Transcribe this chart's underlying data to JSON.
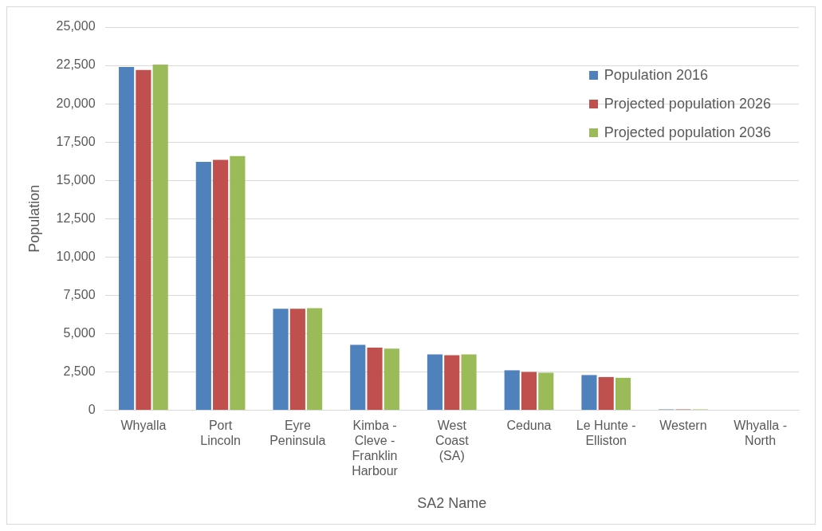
{
  "chart_data": {
    "type": "bar",
    "xlabel": "SA2 Name",
    "ylabel": "Population",
    "categories": [
      "Whyalla",
      "Port Lincoln",
      "Eyre Peninsula",
      "Kimba - Cleve - Franklin Harbour",
      "West Coast (SA)",
      "Ceduna",
      "Le Hunte - Elliston",
      "Western",
      "Whyalla - North"
    ],
    "series": [
      {
        "name": "Population 2016",
        "color": "#4f81bd",
        "values": [
          22400,
          16210,
          6620,
          4270,
          3650,
          2610,
          2300,
          60,
          0
        ]
      },
      {
        "name": "Projected population 2026",
        "color": "#c0504d",
        "values": [
          22200,
          16340,
          6620,
          4090,
          3590,
          2500,
          2170,
          60,
          0
        ]
      },
      {
        "name": "Projected population 2036",
        "color": "#9bbb59",
        "values": [
          22550,
          16580,
          6670,
          4030,
          3650,
          2450,
          2120,
          60,
          0
        ]
      }
    ],
    "ylim": [
      0,
      25000
    ],
    "yticks": [
      {
        "value": 0,
        "label": "0"
      },
      {
        "value": 2500,
        "label": "2,500"
      },
      {
        "value": 5000,
        "label": "5,000"
      },
      {
        "value": 7500,
        "label": "7,500"
      },
      {
        "value": 10000,
        "label": "10,000"
      },
      {
        "value": 12500,
        "label": "12,500"
      },
      {
        "value": 15000,
        "label": "15,000"
      },
      {
        "value": 17500,
        "label": "17,500"
      },
      {
        "value": 20000,
        "label": "20,000"
      },
      {
        "value": 22500,
        "label": "22,500"
      },
      {
        "value": 25000,
        "label": "25,000"
      }
    ],
    "grid": "y",
    "legend": "top right"
  }
}
